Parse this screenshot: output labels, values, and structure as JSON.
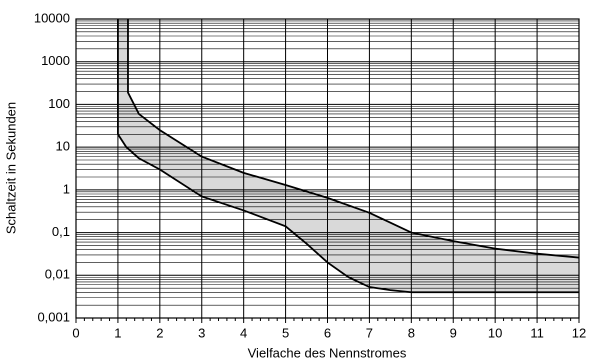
{
  "chart_data": {
    "type": "band",
    "x_label": "Vielfache des Nennstromes",
    "y_label": "Schaltzeit in Sekunden",
    "xlim": [
      0,
      12
    ],
    "xticks": [
      0,
      1,
      2,
      3,
      4,
      5,
      6,
      7,
      8,
      9,
      10,
      11,
      12
    ],
    "ylim": [
      0.001,
      10000
    ],
    "log_y": true,
    "yticks": [
      {
        "value": 0.001,
        "label": "0,001"
      },
      {
        "value": 0.01,
        "label": "0,01"
      },
      {
        "value": 0.1,
        "label": "0,1"
      },
      1,
      10,
      100,
      1000,
      10000
    ],
    "grid": true,
    "band_color": "#d9d9d9",
    "series": [
      {
        "color": "#000000",
        "x": [
          1,
          1,
          1.2,
          1.5,
          2,
          3,
          4,
          5,
          5.5,
          6,
          6.5,
          7,
          7.5,
          8,
          12
        ],
        "values": [
          10000,
          20,
          10,
          5.5,
          3,
          0.7,
          0.33,
          0.14,
          0.055,
          0.02,
          0.009,
          0.0053,
          0.0045,
          0.004,
          0.004
        ]
      },
      {
        "color": "#000000",
        "x": [
          1.24,
          1.24,
          1.5,
          2,
          3,
          4,
          5,
          6,
          7,
          8,
          9,
          10,
          11,
          12
        ],
        "values": [
          10000,
          190,
          60,
          25,
          6,
          2.5,
          1.3,
          0.65,
          0.29,
          0.1,
          0.063,
          0.042,
          0.032,
          0.026
        ]
      }
    ]
  }
}
